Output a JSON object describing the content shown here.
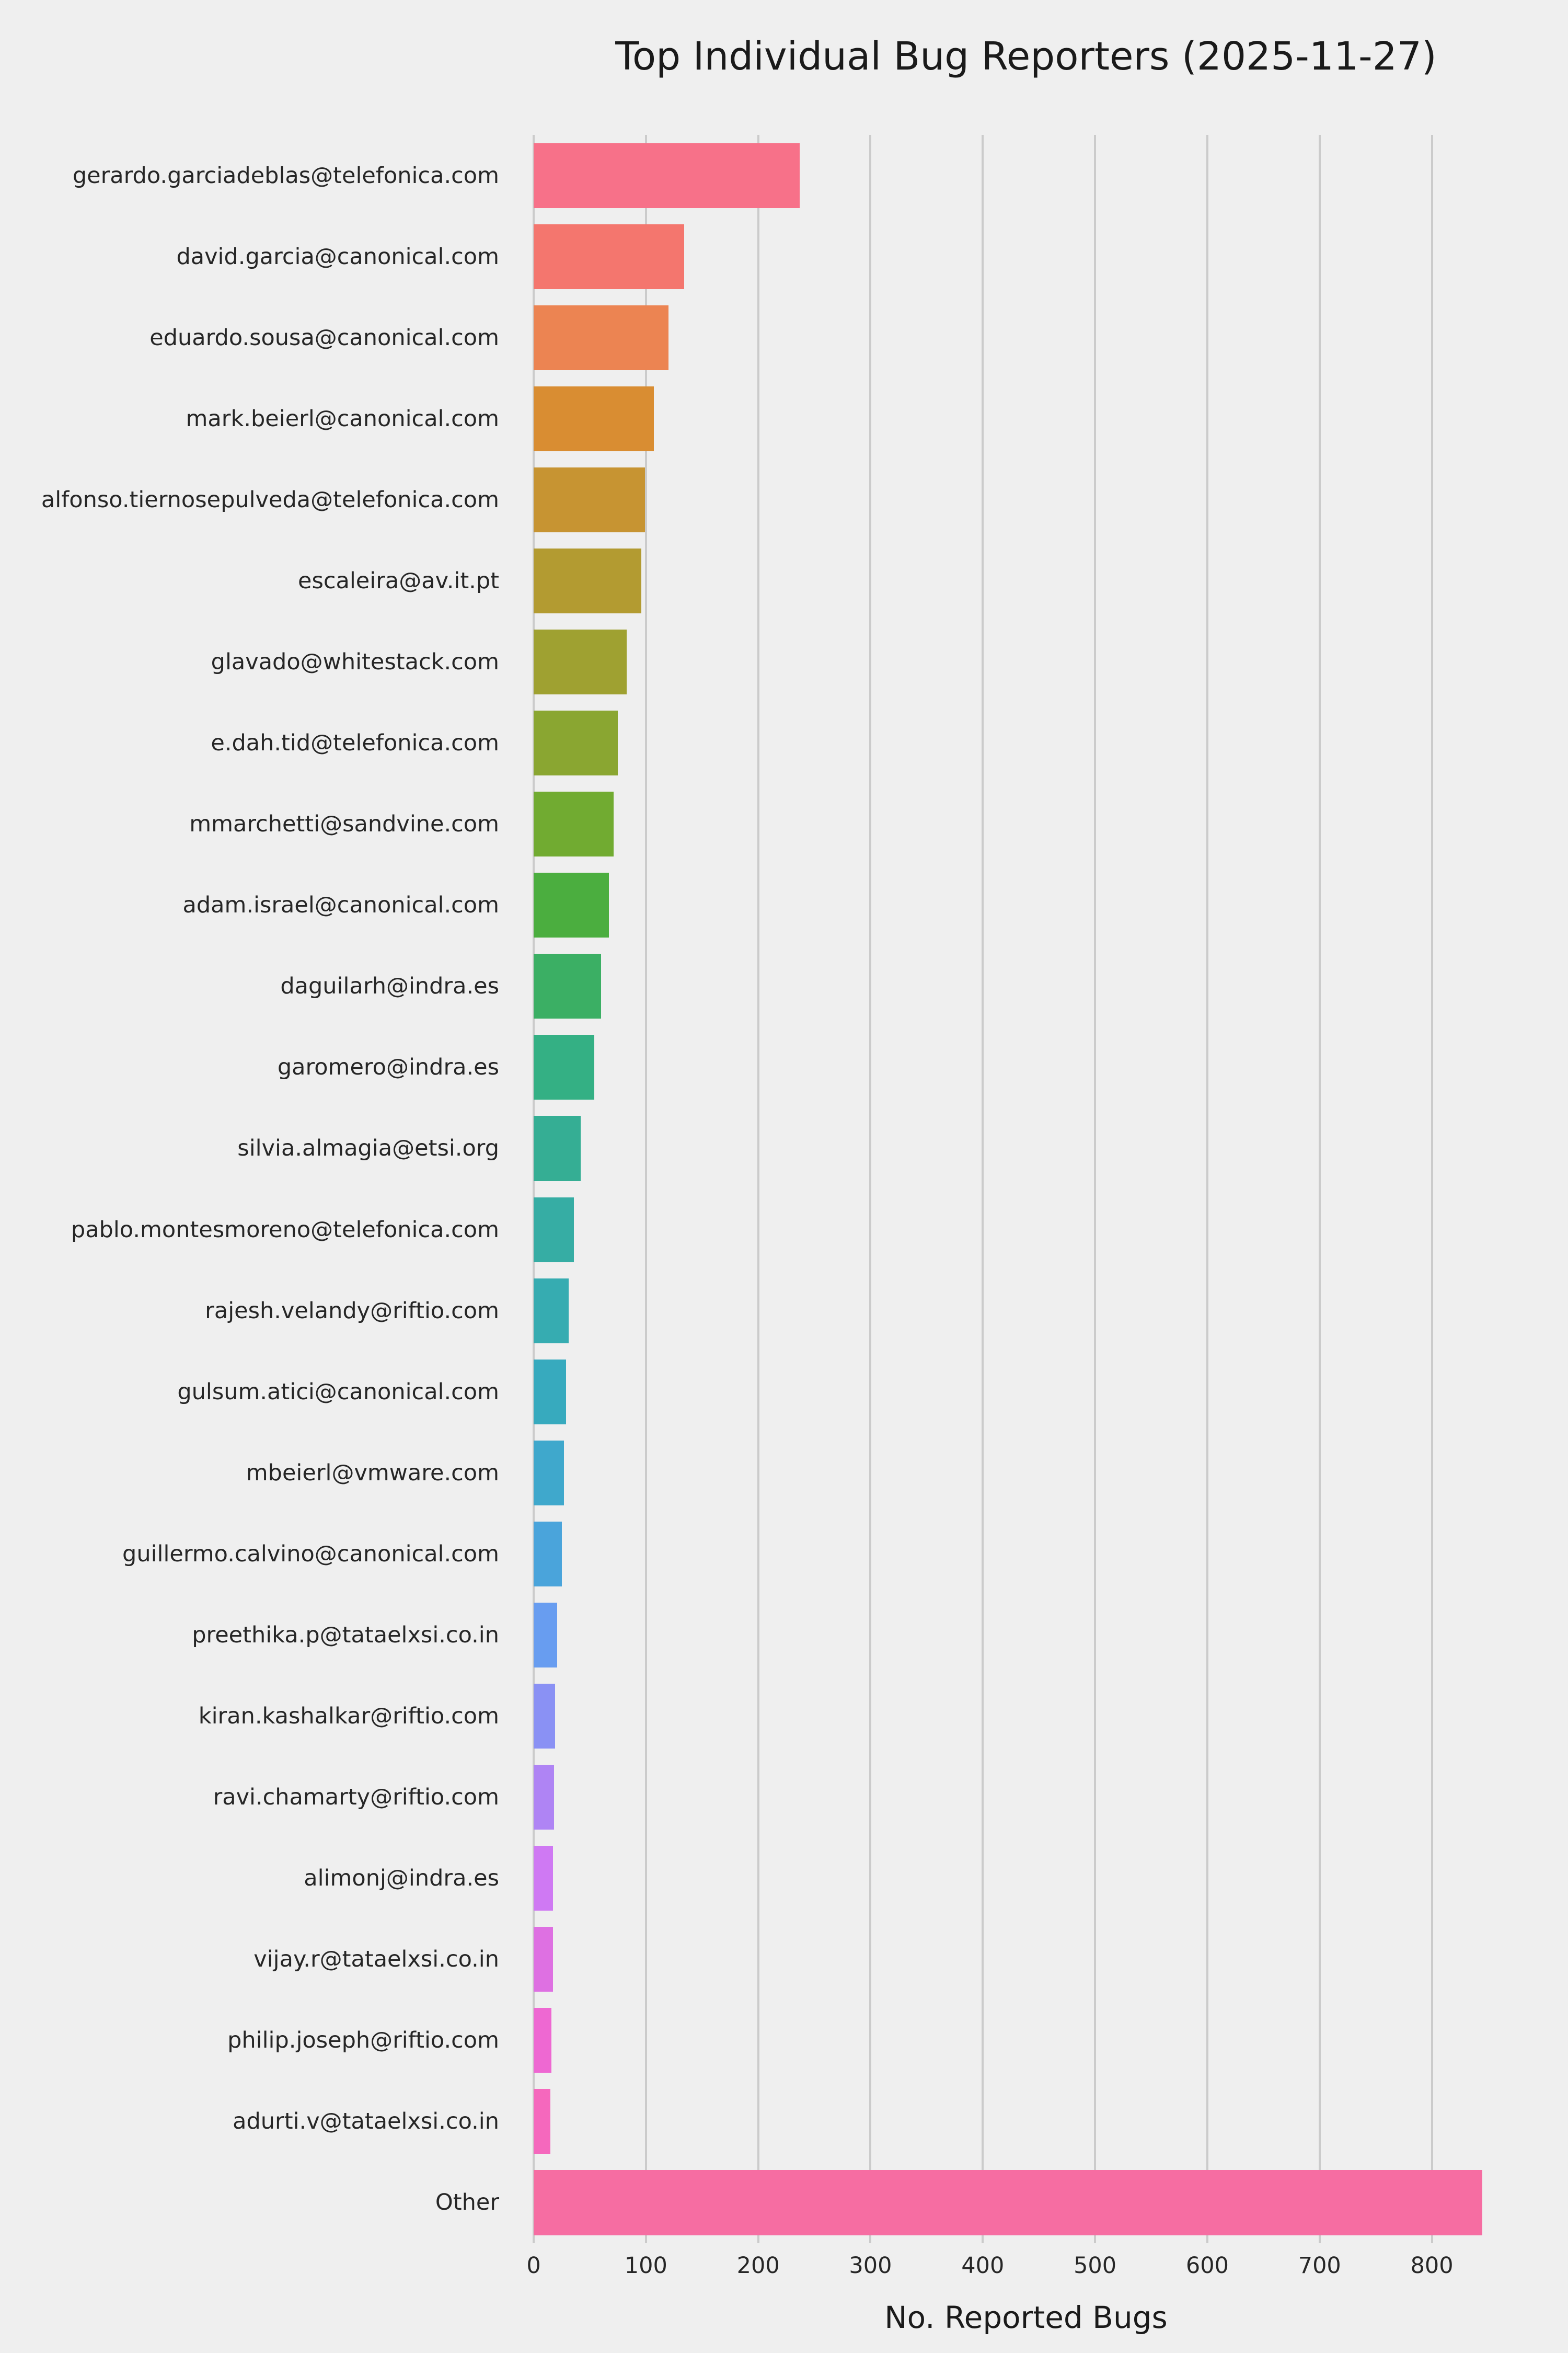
{
  "chart_data": {
    "type": "bar",
    "orientation": "horizontal",
    "title": "Top Individual Bug Reporters (2025-11-27)",
    "xlabel": "No. Reported Bugs",
    "xlim": [
      0,
      877
    ],
    "xticks": [
      0,
      100,
      200,
      300,
      400,
      500,
      600,
      700,
      800
    ],
    "grid": true,
    "legend": "none",
    "categories": [
      "gerardo.garciadeblas@telefonica.com",
      "david.garcia@canonical.com",
      "eduardo.sousa@canonical.com",
      "mark.beierl@canonical.com",
      "alfonso.tiernosepulveda@telefonica.com",
      "escaleira@av.it.pt",
      "glavado@whitestack.com",
      "e.dah.tid@telefonica.com",
      "mmarchetti@sandvine.com",
      "adam.israel@canonical.com",
      "daguilarh@indra.es",
      "garomero@indra.es",
      "silvia.almagia@etsi.org",
      "pablo.montesmoreno@telefonica.com",
      "rajesh.velandy@riftio.com",
      "gulsum.atici@canonical.com",
      "mbeierl@vmware.com",
      "guillermo.calvino@canonical.com",
      "preethika.p@tataelxsi.co.in",
      "kiran.kashalkar@riftio.com",
      "ravi.chamarty@riftio.com",
      "alimonj@indra.es",
      "vijay.r@tataelxsi.co.in",
      "philip.joseph@riftio.com",
      "adurti.v@tataelxsi.co.in",
      "Other"
    ],
    "values": [
      237,
      134,
      120,
      107,
      99,
      96,
      83,
      75,
      71,
      67,
      60,
      54,
      42,
      36,
      31,
      29,
      27,
      25,
      21,
      19,
      18,
      17,
      17,
      16,
      15,
      845
    ],
    "colors": [
      "#f77189",
      "#f4766e",
      "#ec8452",
      "#d98d32",
      "#c79432",
      "#b39b31",
      "#9fa131",
      "#8aa631",
      "#71ab31",
      "#4bae3f",
      "#3baf64",
      "#34b084",
      "#35ae94",
      "#36ada4",
      "#36acb1",
      "#37aabe",
      "#3fa8cc",
      "#4aa4db",
      "#689df0",
      "#8a91f4",
      "#af84f4",
      "#cf79f3",
      "#de70e2",
      "#ee68d2",
      "#f568bd",
      "#f66da2"
    ],
    "background_color": "#efefef",
    "grid_color": "#cbcbcb",
    "text_color": "#262626"
  }
}
